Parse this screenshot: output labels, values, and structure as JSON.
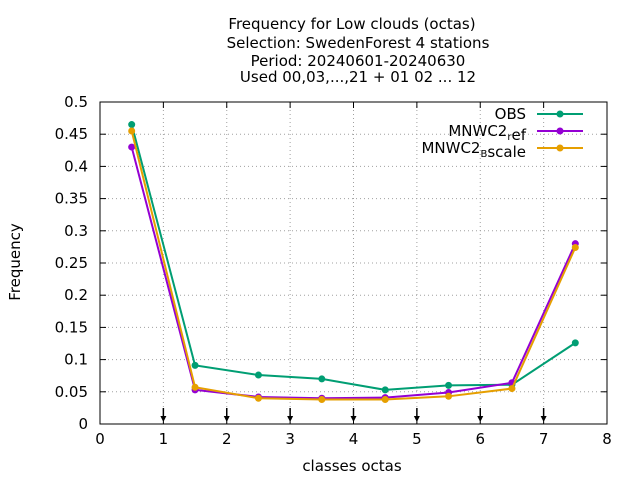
{
  "chart_data": {
    "type": "line",
    "title_lines": [
      "Frequency  for Low clouds (octas)",
      "Selection: SwedenForest      4 stations",
      "Period: 20240601-20240630",
      "Used 00,03,...,21 + 01 02 ... 12"
    ],
    "xlabel": "classes octas",
    "ylabel": "Frequency",
    "xlim": [
      0,
      8
    ],
    "ylim": [
      0,
      0.5
    ],
    "x_ticks": [
      "0",
      "1",
      "2",
      "3",
      "4",
      "5",
      "6",
      "7",
      "8"
    ],
    "y_ticks": [
      "0",
      "0.05",
      "0.1",
      "0.15",
      "0.2",
      "0.25",
      "0.3",
      "0.35",
      "0.4",
      "0.45",
      "0.5"
    ],
    "grid": true,
    "legend_position": "top-right",
    "x": [
      0.5,
      1.5,
      2.5,
      3.5,
      4.5,
      5.5,
      6.5,
      7.5
    ],
    "series": [
      {
        "name": "OBS",
        "legend_parts": [
          {
            "text": "OBS",
            "sub": ""
          }
        ],
        "color": "#009e73",
        "values": [
          0.465,
          0.091,
          0.076,
          0.07,
          0.053,
          0.06,
          0.061,
          0.126
        ]
      },
      {
        "name": "MNWC2_ref",
        "legend_parts": [
          {
            "text": "MNWC2",
            "sub": "r"
          },
          {
            "text": "ef",
            "sub": ""
          }
        ],
        "color": "#9400d3",
        "values": [
          0.43,
          0.053,
          0.042,
          0.04,
          0.041,
          0.049,
          0.064,
          0.28
        ]
      },
      {
        "name": "MNWC2_Bscale",
        "legend_parts": [
          {
            "text": "MNWC2",
            "sub": "B"
          },
          {
            "text": "scale",
            "sub": ""
          }
        ],
        "color": "#e69f00",
        "values": [
          0.455,
          0.057,
          0.04,
          0.038,
          0.038,
          0.043,
          0.055,
          0.274
        ]
      }
    ],
    "bin_markers_x": [
      1,
      2,
      3,
      4,
      5,
      6,
      7
    ]
  }
}
